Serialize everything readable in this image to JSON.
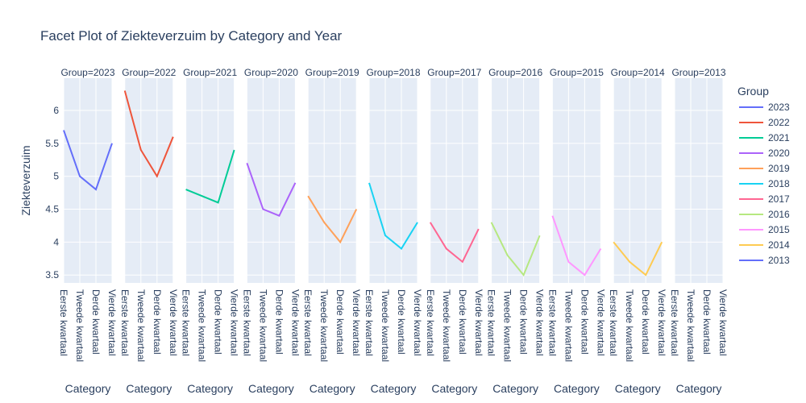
{
  "chart_data": {
    "type": "line",
    "title": "Facet Plot of Ziekteverzuim by Category and Year",
    "xlabel": "Category",
    "ylabel": "Ziekteverzuim",
    "legend_title": "Group",
    "legend": "right",
    "grid": true,
    "categories": [
      "Eerste kwartaal",
      "Tweede kwartaal",
      "Derde kwartaal",
      "Vierde kwartaal"
    ],
    "facet_labels": [
      "Group=2023",
      "Group=2022",
      "Group=2021",
      "Group=2020",
      "Group=2019",
      "Group=2018",
      "Group=2017",
      "Group=2016",
      "Group=2015",
      "Group=2014",
      "Group=2013"
    ],
    "ylim": [
      3.38,
      6.49
    ],
    "yticks": [
      3.5,
      4,
      4.5,
      5,
      5.5,
      6
    ],
    "series": [
      {
        "name": "2023",
        "color": "#636efa",
        "values": [
          5.7,
          5.0,
          4.8,
          5.5
        ]
      },
      {
        "name": "2022",
        "color": "#EF553B",
        "values": [
          6.3,
          5.4,
          5.0,
          5.6
        ]
      },
      {
        "name": "2021",
        "color": "#00cc96",
        "values": [
          4.8,
          4.7,
          4.6,
          5.4
        ]
      },
      {
        "name": "2020",
        "color": "#ab63fa",
        "values": [
          5.2,
          4.5,
          4.4,
          4.9
        ]
      },
      {
        "name": "2019",
        "color": "#FFA15A",
        "values": [
          4.7,
          4.3,
          4.0,
          4.5
        ]
      },
      {
        "name": "2018",
        "color": "#19d3f3",
        "values": [
          4.9,
          4.1,
          3.9,
          4.3
        ]
      },
      {
        "name": "2017",
        "color": "#FF6692",
        "values": [
          4.3,
          3.9,
          3.7,
          4.2
        ]
      },
      {
        "name": "2016",
        "color": "#B6E880",
        "values": [
          4.3,
          3.8,
          3.5,
          4.1
        ]
      },
      {
        "name": "2015",
        "color": "#FF97FF",
        "values": [
          4.4,
          3.7,
          3.5,
          3.9
        ]
      },
      {
        "name": "2014",
        "color": "#FECB52",
        "values": [
          4.0,
          3.7,
          3.5,
          4.0
        ]
      },
      {
        "name": "2013",
        "color": "#636efa",
        "values": [
          null,
          null,
          null,
          null
        ]
      }
    ]
  }
}
